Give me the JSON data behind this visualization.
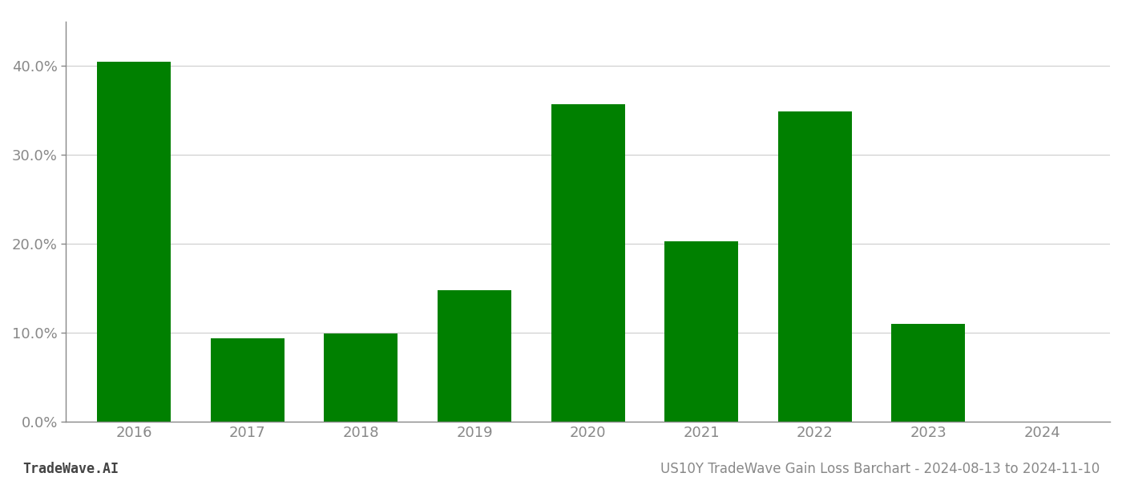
{
  "years": [
    "2016",
    "2017",
    "2018",
    "2019",
    "2020",
    "2021",
    "2022",
    "2023",
    "2024"
  ],
  "values": [
    0.405,
    0.094,
    0.099,
    0.148,
    0.357,
    0.203,
    0.349,
    0.11,
    0.0
  ],
  "bar_color": "#008000",
  "background_color": "#ffffff",
  "grid_color": "#cccccc",
  "title_right": "US10Y TradeWave Gain Loss Barchart - 2024-08-13 to 2024-11-10",
  "title_left": "TradeWave.AI",
  "tick_fontsize": 13,
  "title_fontsize": 12,
  "ylim_max": 0.45,
  "ytick_step": 0.1,
  "bar_width": 0.65
}
